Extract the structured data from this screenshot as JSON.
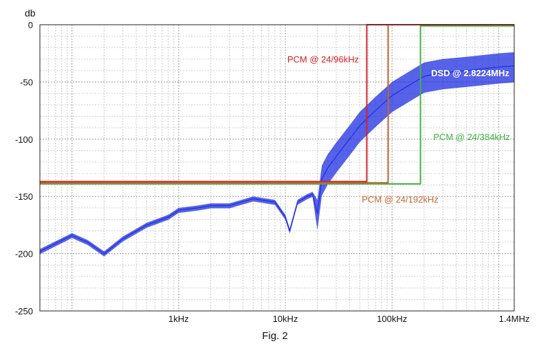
{
  "figure": {
    "caption": "Fig. 2"
  },
  "chart_data": {
    "type": "line",
    "title": "",
    "xlabel": "",
    "ylabel": "db",
    "xscale": "log",
    "xlim": [
      50,
      1400000
    ],
    "ylim": [
      -250,
      0
    ],
    "grid": true,
    "legend": "inline labels",
    "x_tick_labels": [
      {
        "x": 1000,
        "label": "1kHz"
      },
      {
        "x": 10000,
        "label": "10kHz"
      },
      {
        "x": 100000,
        "label": "100kHz"
      },
      {
        "x": 1400000,
        "label": "1.4MHz"
      }
    ],
    "y_ticks": [
      0,
      -50,
      -100,
      -150,
      -200,
      -250
    ],
    "series": [
      {
        "name": "PCM @ 24/96kHz",
        "color": "#d8232a",
        "x": [
          50,
          58000,
          58000,
          1400000
        ],
        "y": [
          -137,
          -137,
          0,
          0
        ]
      },
      {
        "name": "PCM @ 24/192kHz",
        "color": "#c86432",
        "x": [
          50,
          92000,
          92000,
          1400000
        ],
        "y": [
          -138,
          -138,
          0,
          0
        ]
      },
      {
        "name": "PCM @ 24/384kHz",
        "color": "#3cb43c",
        "x": [
          50,
          185000,
          185000,
          1400000
        ],
        "y": [
          -139,
          -139,
          -1,
          -1
        ]
      },
      {
        "name": "DSD @ 2.8224MHz",
        "color": "#1e2ee0",
        "label_color": "#ffffff",
        "x": [
          50,
          100,
          140,
          200,
          300,
          500,
          800,
          1000,
          1500,
          2000,
          3000,
          5000,
          8000,
          10000,
          11000,
          13000,
          16000,
          18000,
          20000,
          22000,
          25000,
          30000,
          40000,
          50000,
          70000,
          100000,
          150000,
          200000,
          300000,
          500000,
          800000,
          1000000,
          1400000
        ],
        "y": [
          -198,
          -184,
          -190,
          -200,
          -187,
          -175,
          -168,
          -162,
          -160,
          -158,
          -158,
          -152,
          -155,
          -168,
          -180,
          -155,
          -150,
          -148,
          -165,
          -135,
          -125,
          -115,
          -100,
          -88,
          -75,
          -62,
          -52,
          -45,
          -42,
          -40,
          -38,
          -37,
          -36
        ]
      }
    ]
  }
}
